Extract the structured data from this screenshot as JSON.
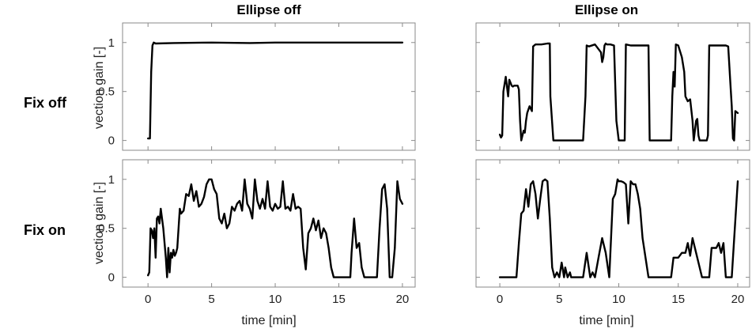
{
  "figure": {
    "col_titles": [
      "Ellipse off",
      "Ellipse on"
    ],
    "row_labels": [
      "Fix off",
      "Fix on"
    ],
    "ylabel": "vection gain [-]",
    "xlabel": "time [min]"
  },
  "chart_data": [
    {
      "type": "line",
      "title": "Ellipse off",
      "row_label": "Fix off",
      "ylabel": "vection gain [-]",
      "xlabel": "",
      "xlim": [
        -2,
        21
      ],
      "ylim": [
        -0.1,
        1.2
      ],
      "xticks": [
        0,
        5,
        10,
        15,
        20
      ],
      "yticks": [
        0,
        0.5,
        1
      ],
      "ytick_labels": [
        "0",
        "0.5",
        "1"
      ],
      "xtick_labels_shown": false,
      "ytick_labels_shown": true,
      "series": [
        {
          "x": [
            0,
            0.15,
            0.25,
            0.35,
            0.45,
            0.6,
            2,
            5,
            8,
            10,
            12,
            15,
            18,
            20
          ],
          "y": [
            0.02,
            0.02,
            0.7,
            0.97,
            1.0,
            0.99,
            0.995,
            1.0,
            0.995,
            1.0,
            1.0,
            1.0,
            1.0,
            1.0
          ]
        }
      ]
    },
    {
      "type": "line",
      "title": "Ellipse on",
      "row_label": "Fix off",
      "xlabel": "",
      "xlim": [
        -2,
        21
      ],
      "ylim": [
        -0.1,
        1.2
      ],
      "xticks": [
        0,
        5,
        10,
        15,
        20
      ],
      "yticks": [
        0,
        0.5,
        1
      ],
      "xtick_labels_shown": false,
      "ytick_labels_shown": false,
      "series": [
        {
          "x": [
            0,
            0.1,
            0.2,
            0.3,
            0.5,
            0.7,
            0.8,
            1.0,
            1.1,
            1.2,
            1.5,
            1.6,
            1.7,
            1.8,
            1.9,
            2.0,
            2.1,
            2.2,
            2.3,
            2.5,
            2.7,
            2.8,
            3.0,
            3.5,
            4.0,
            4.2,
            4.25,
            4.5,
            5.0,
            6.0,
            7.0,
            7.2,
            7.3,
            7.5,
            8.0,
            8.5,
            8.6,
            8.7,
            8.8,
            8.9,
            9.0,
            9.3,
            9.6,
            9.8,
            9.9,
            10.0,
            10.3,
            10.5,
            10.6,
            11.0,
            12.0,
            12.5,
            12.6,
            13.0,
            14.0,
            14.4,
            14.5,
            14.6,
            14.7,
            14.8,
            15.0,
            15.3,
            15.5,
            15.6,
            15.8,
            16.0,
            16.2,
            16.3,
            16.5,
            16.6,
            16.7,
            16.8,
            17.0,
            17.2,
            17.4,
            17.5,
            17.6,
            18.0,
            18.5,
            19.0,
            19.2,
            19.4,
            19.5,
            19.6,
            19.7,
            19.8,
            20.0
          ],
          "y": [
            0.06,
            0.03,
            0.05,
            0.5,
            0.65,
            0.45,
            0.62,
            0.56,
            0.55,
            0.56,
            0.56,
            0.52,
            0.2,
            0.0,
            0.05,
            0.1,
            0.08,
            0.2,
            0.28,
            0.35,
            0.3,
            0.96,
            0.98,
            0.98,
            0.99,
            0.99,
            0.45,
            0.0,
            0.0,
            0.0,
            0.0,
            0.45,
            0.97,
            0.96,
            0.98,
            0.9,
            0.8,
            0.85,
            0.97,
            0.99,
            0.98,
            0.98,
            0.97,
            0.2,
            0.1,
            0.0,
            0.0,
            0.0,
            0.98,
            0.97,
            0.97,
            0.97,
            0.0,
            0.0,
            0.0,
            0.0,
            0.45,
            0.7,
            0.55,
            0.98,
            0.97,
            0.85,
            0.7,
            0.45,
            0.4,
            0.42,
            0.2,
            0.0,
            0.2,
            0.22,
            0.05,
            0.0,
            0.0,
            0.0,
            0.0,
            0.05,
            0.97,
            0.97,
            0.97,
            0.97,
            0.96,
            0.55,
            0.35,
            0.02,
            0.0,
            0.3,
            0.28
          ]
        }
      ]
    },
    {
      "type": "line",
      "title": "",
      "row_label": "Fix on",
      "ylabel": "vection gain [-]",
      "xlabel": "time [min]",
      "xlim": [
        -2,
        21
      ],
      "ylim": [
        -0.1,
        1.2
      ],
      "xticks": [
        0,
        5,
        10,
        15,
        20
      ],
      "xtick_labels": [
        "0",
        "5",
        "10",
        "15",
        "20"
      ],
      "yticks": [
        0,
        0.5,
        1
      ],
      "ytick_labels": [
        "0",
        "0.5",
        "1"
      ],
      "xtick_labels_shown": true,
      "ytick_labels_shown": true,
      "series": [
        {
          "x": [
            0,
            0.1,
            0.2,
            0.3,
            0.4,
            0.5,
            0.6,
            0.7,
            0.8,
            0.9,
            1.0,
            1.1,
            1.2,
            1.3,
            1.4,
            1.5,
            1.6,
            1.7,
            1.8,
            1.9,
            2.0,
            2.1,
            2.2,
            2.3,
            2.4,
            2.5,
            2.6,
            2.8,
            3.0,
            3.2,
            3.4,
            3.6,
            3.8,
            4.0,
            4.2,
            4.4,
            4.6,
            4.8,
            5.0,
            5.2,
            5.4,
            5.6,
            5.8,
            6.0,
            6.2,
            6.4,
            6.6,
            6.8,
            7.0,
            7.2,
            7.4,
            7.6,
            7.8,
            8.0,
            8.2,
            8.4,
            8.6,
            8.8,
            9.0,
            9.2,
            9.4,
            9.6,
            9.8,
            10.0,
            10.2,
            10.4,
            10.6,
            10.8,
            11.0,
            11.2,
            11.4,
            11.6,
            11.8,
            12.0,
            12.2,
            12.4,
            12.6,
            12.8,
            13.0,
            13.2,
            13.4,
            13.6,
            13.8,
            14.0,
            14.2,
            14.4,
            14.6,
            14.8,
            15.0,
            15.3,
            15.6,
            15.9,
            16.0,
            16.2,
            16.4,
            16.6,
            16.8,
            17.0,
            17.2,
            17.6,
            18.0,
            18.2,
            18.4,
            18.6,
            18.8,
            19.0,
            19.2,
            19.4,
            19.6,
            19.8,
            20.0
          ],
          "y": [
            0.02,
            0.05,
            0.5,
            0.48,
            0.4,
            0.5,
            0.2,
            0.6,
            0.62,
            0.55,
            0.7,
            0.6,
            0.5,
            0.35,
            0.2,
            0.0,
            0.3,
            0.05,
            0.25,
            0.2,
            0.28,
            0.22,
            0.25,
            0.3,
            0.5,
            0.7,
            0.65,
            0.68,
            0.85,
            0.83,
            0.95,
            0.78,
            0.88,
            0.72,
            0.75,
            0.82,
            0.95,
            1.0,
            1.0,
            0.9,
            0.85,
            0.6,
            0.55,
            0.65,
            0.5,
            0.55,
            0.72,
            0.68,
            0.75,
            0.78,
            0.68,
            1.0,
            0.75,
            0.7,
            0.6,
            1.0,
            0.78,
            0.7,
            0.8,
            0.7,
            0.98,
            0.72,
            0.68,
            0.75,
            0.7,
            0.72,
            0.98,
            0.7,
            0.72,
            0.68,
            0.85,
            0.7,
            0.72,
            0.7,
            0.3,
            0.08,
            0.45,
            0.5,
            0.6,
            0.48,
            0.58,
            0.4,
            0.5,
            0.45,
            0.3,
            0.1,
            0.0,
            0.0,
            0.0,
            0.0,
            0.0,
            0.0,
            0.25,
            0.6,
            0.3,
            0.35,
            0.1,
            0.0,
            0.0,
            0.0,
            0.0,
            0.5,
            0.9,
            0.95,
            0.7,
            0.0,
            0.0,
            0.3,
            0.98,
            0.8,
            0.75
          ]
        }
      ]
    },
    {
      "type": "line",
      "title": "",
      "row_label": "Fix on",
      "xlabel": "time [min]",
      "xlim": [
        -2,
        21
      ],
      "ylim": [
        -0.1,
        1.2
      ],
      "xticks": [
        0,
        5,
        10,
        15,
        20
      ],
      "xtick_labels": [
        "0",
        "5",
        "10",
        "15",
        "20"
      ],
      "yticks": [
        0,
        0.5,
        1
      ],
      "xtick_labels_shown": true,
      "ytick_labels_shown": false,
      "series": [
        {
          "x": [
            0,
            0.5,
            1.0,
            1.4,
            1.6,
            1.8,
            2.0,
            2.2,
            2.4,
            2.6,
            2.8,
            3.0,
            3.2,
            3.4,
            3.6,
            3.8,
            4.0,
            4.2,
            4.4,
            4.6,
            4.8,
            5.0,
            5.2,
            5.4,
            5.5,
            5.7,
            5.9,
            6.0,
            6.3,
            6.5,
            6.8,
            7.0,
            7.3,
            7.6,
            7.8,
            8.0,
            8.3,
            8.6,
            8.9,
            9.2,
            9.5,
            9.7,
            9.9,
            10.0,
            10.2,
            10.4,
            10.6,
            10.8,
            11.0,
            11.2,
            11.4,
            11.6,
            11.8,
            12.0,
            12.5,
            13.0,
            13.5,
            14.0,
            14.4,
            14.6,
            14.8,
            15.0,
            15.3,
            15.6,
            15.8,
            16.0,
            16.2,
            16.5,
            17.0,
            17.4,
            17.6,
            17.8,
            18.0,
            18.2,
            18.4,
            18.6,
            18.8,
            19.0,
            19.5,
            20.0
          ],
          "y": [
            0.0,
            0.0,
            0.0,
            0.0,
            0.35,
            0.65,
            0.68,
            0.9,
            0.72,
            0.95,
            0.98,
            0.85,
            0.6,
            0.8,
            0.98,
            1.0,
            0.98,
            0.6,
            0.1,
            0.0,
            0.05,
            0.0,
            0.15,
            0.0,
            0.1,
            0.0,
            0.05,
            0.0,
            0.0,
            0.0,
            0.0,
            0.0,
            0.25,
            0.0,
            0.05,
            0.0,
            0.2,
            0.4,
            0.25,
            0.0,
            0.8,
            0.85,
            1.0,
            0.98,
            0.98,
            0.97,
            0.95,
            0.55,
            0.98,
            0.95,
            0.95,
            0.85,
            0.7,
            0.4,
            0.0,
            0.0,
            0.0,
            0.0,
            0.0,
            0.2,
            0.2,
            0.2,
            0.25,
            0.25,
            0.35,
            0.22,
            0.4,
            0.25,
            0.0,
            0.0,
            0.0,
            0.3,
            0.3,
            0.3,
            0.35,
            0.25,
            0.35,
            0.0,
            0.0,
            0.98
          ]
        }
      ]
    }
  ]
}
